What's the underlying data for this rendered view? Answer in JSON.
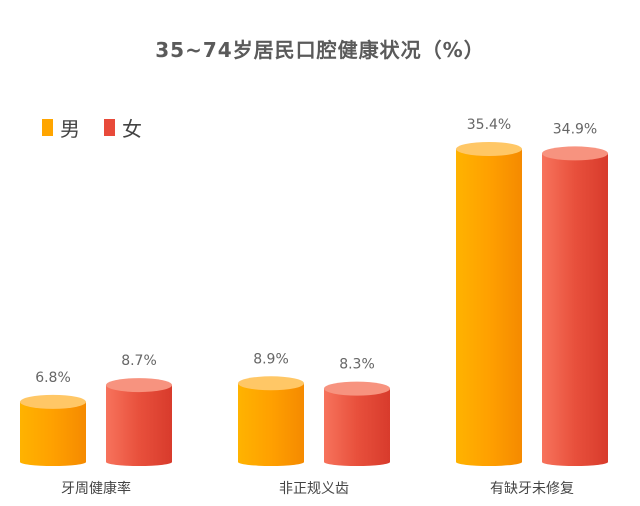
{
  "chart_data": {
    "type": "bar",
    "title": "35~74岁居民口腔健康状况（%）",
    "categories": [
      "牙周健康率",
      "非正规义齿",
      "有缺牙未修复"
    ],
    "series": [
      {
        "name": "男",
        "values": [
          6.8,
          8.9,
          35.4
        ],
        "labels": [
          "6.8%",
          "8.9%",
          "35.4%"
        ],
        "color": "#FFA500"
      },
      {
        "name": "女",
        "values": [
          8.7,
          8.3,
          34.9
        ],
        "labels": [
          "8.7%",
          "8.3%",
          "34.9%"
        ],
        "color": "#E84A3A"
      }
    ],
    "ylim": [
      0,
      35.4
    ],
    "grid": false,
    "legend_position": "top-left"
  }
}
